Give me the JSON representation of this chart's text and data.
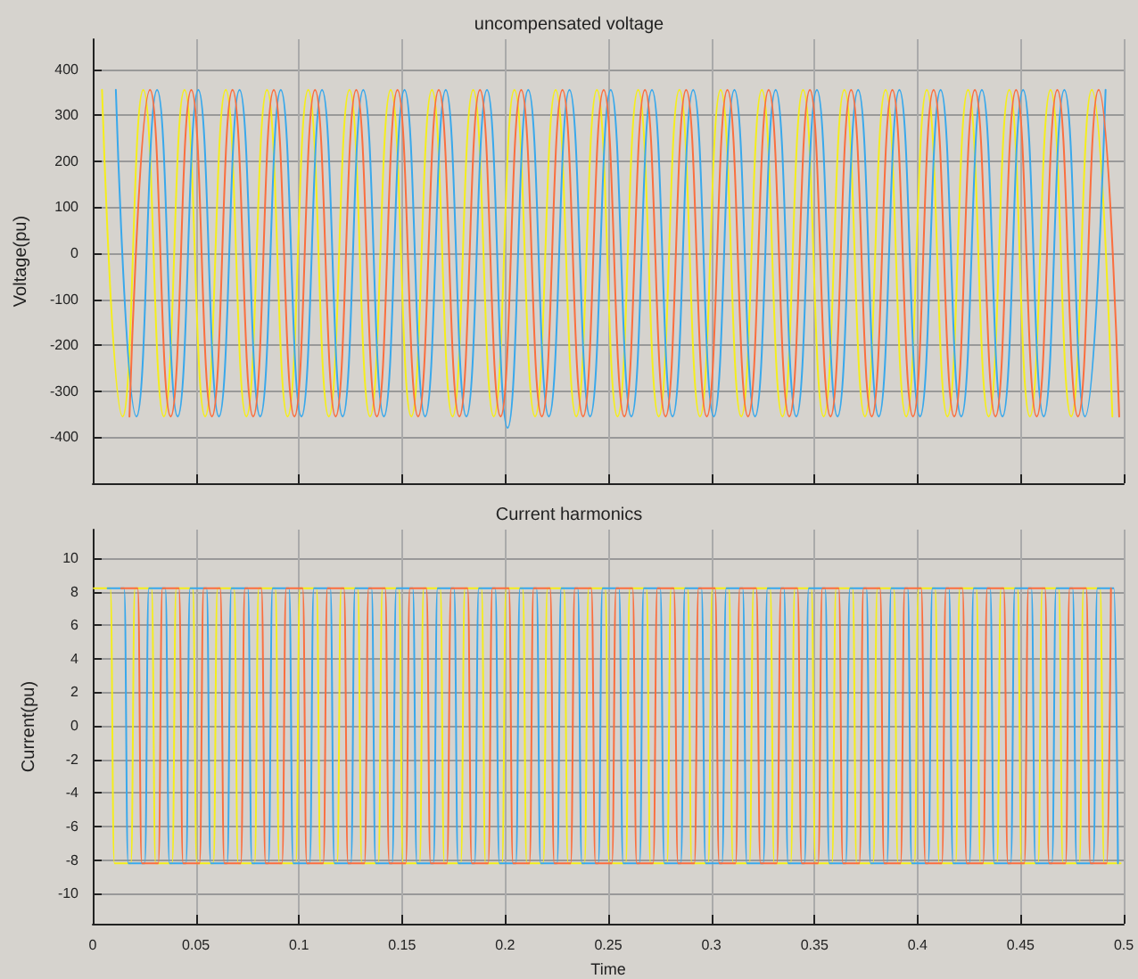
{
  "chart_data": [
    {
      "type": "line",
      "title": "uncompensated voltage",
      "ylabel": "Voltage(pu)",
      "xlim": [
        0,
        0.5
      ],
      "xticks": [
        0,
        0.05,
        0.1,
        0.15,
        0.2,
        0.25,
        0.3,
        0.35,
        0.4,
        0.45,
        0.5
      ],
      "ylim": [
        -500,
        465
      ],
      "yticks": [
        -400,
        -300,
        -200,
        -100,
        0,
        100,
        200,
        300,
        400
      ],
      "grid": true,
      "tick_labels": "y",
      "marker": "none",
      "line_style": "solid",
      "series": [
        {
          "color": "#f5ee1a",
          "x": [
            0.0045,
            0.0145,
            0.0245,
            0.0345,
            0.0445,
            0.0545,
            0.0645,
            0.0745,
            0.0845,
            0.0945,
            0.1045,
            0.1145,
            0.1245,
            0.1345,
            0.1445,
            0.1545,
            0.1645,
            0.1745,
            0.1845,
            0.1945,
            0.2045,
            0.2145,
            0.2245,
            0.2345,
            0.2445,
            0.2545,
            0.2645,
            0.2745,
            0.2845,
            0.2945,
            0.3045,
            0.3145,
            0.3245,
            0.3345,
            0.3445,
            0.3545,
            0.3645,
            0.3745,
            0.3845,
            0.3945,
            0.4045,
            0.4145,
            0.4245,
            0.4345,
            0.4445,
            0.4545,
            0.4645,
            0.4745,
            0.4845,
            0.4945
          ],
          "values": [
            355,
            -355,
            355,
            -355,
            355,
            -355,
            355,
            -355,
            355,
            -355,
            355,
            -355,
            355,
            -355,
            355,
            -355,
            355,
            -355,
            355,
            -355,
            355,
            -355,
            355,
            -355,
            355,
            -355,
            355,
            -355,
            355,
            -355,
            355,
            -355,
            355,
            -355,
            355,
            -355,
            355,
            -355,
            355,
            -355,
            355,
            -355,
            355,
            -355,
            355,
            -355,
            355,
            -355,
            355,
            -355
          ]
        },
        {
          "color": "#38a8ec",
          "x": [
            0.0112,
            0.0212,
            0.0312,
            0.0412,
            0.0512,
            0.0612,
            0.0712,
            0.0812,
            0.0912,
            0.1012,
            0.1112,
            0.1212,
            0.1312,
            0.1412,
            0.1512,
            0.1612,
            0.1712,
            0.1812,
            0.1912,
            0.2012,
            0.2112,
            0.2212,
            0.2312,
            0.2412,
            0.2512,
            0.2612,
            0.2712,
            0.2812,
            0.2912,
            0.3012,
            0.3112,
            0.3212,
            0.3312,
            0.3412,
            0.3512,
            0.3612,
            0.3712,
            0.3812,
            0.3912,
            0.4012,
            0.4112,
            0.4212,
            0.4312,
            0.4412,
            0.4512,
            0.4612,
            0.4712,
            0.4812,
            0.4912
          ],
          "values": [
            355,
            -355,
            355,
            -355,
            355,
            -355,
            355,
            -355,
            355,
            -355,
            355,
            -355,
            355,
            -355,
            355,
            -355,
            355,
            -355,
            355,
            -380,
            355,
            -355,
            355,
            -355,
            355,
            -355,
            355,
            -355,
            355,
            -355,
            355,
            -355,
            355,
            -355,
            355,
            -355,
            355,
            -355,
            355,
            -355,
            355,
            -355,
            355,
            -355,
            355,
            -355,
            355,
            -355,
            355
          ]
        },
        {
          "color": "#fb6e3e",
          "x": [
            0.0178,
            0.0278,
            0.0378,
            0.0478,
            0.0578,
            0.0678,
            0.0778,
            0.0878,
            0.0978,
            0.1078,
            0.1178,
            0.1278,
            0.1378,
            0.1478,
            0.1578,
            0.1678,
            0.1778,
            0.1878,
            0.1978,
            0.2078,
            0.2178,
            0.2278,
            0.2378,
            0.2478,
            0.2578,
            0.2678,
            0.2778,
            0.2878,
            0.2978,
            0.3078,
            0.3178,
            0.3278,
            0.3378,
            0.3478,
            0.3578,
            0.3678,
            0.3778,
            0.3878,
            0.3978,
            0.4078,
            0.4178,
            0.4278,
            0.4378,
            0.4478,
            0.4578,
            0.4678,
            0.4778,
            0.4878,
            0.4978
          ],
          "values": [
            -355,
            355,
            -355,
            355,
            -355,
            355,
            -355,
            355,
            -355,
            355,
            -355,
            355,
            -355,
            355,
            -355,
            355,
            -355,
            355,
            -355,
            355,
            -355,
            355,
            -355,
            355,
            -355,
            355,
            -355,
            355,
            -355,
            355,
            -355,
            355,
            -355,
            355,
            -355,
            355,
            -355,
            355,
            -355,
            355,
            -355,
            355,
            -355,
            355,
            -355,
            355,
            -355,
            355,
            -355
          ]
        }
      ]
    },
    {
      "type": "line",
      "title": "Current harmonics",
      "xlabel": "Time",
      "ylabel": "Current(pu)",
      "xlim": [
        0,
        0.5
      ],
      "xticks": [
        0,
        0.05,
        0.1,
        0.15,
        0.2,
        0.25,
        0.3,
        0.35,
        0.4,
        0.45,
        0.5
      ],
      "ylim": [
        -11.8,
        11.7
      ],
      "yticks": [
        -10,
        -8,
        -6,
        -4,
        -2,
        0,
        2,
        4,
        6,
        8,
        10
      ],
      "grid": true,
      "marker": "none",
      "line_style": "solid",
      "series": [
        {
          "color": "#f5ee1a",
          "x": [
            0.0005,
            0.0085,
            0.0105,
            0.0185,
            0.0205,
            0.0285,
            0.0305,
            0.0385,
            0.0405,
            0.0485,
            0.0505,
            0.0585,
            0.0605,
            0.0685,
            0.0705,
            0.0785,
            0.0805,
            0.0885,
            0.0905,
            0.0985,
            0.1005,
            0.1085,
            0.1105,
            0.1185,
            0.1205,
            0.1285,
            0.1305,
            0.1385,
            0.1405,
            0.1485,
            0.1505,
            0.1585,
            0.1605,
            0.1685,
            0.1705,
            0.1785,
            0.1805,
            0.1885,
            0.1905,
            0.1985,
            0.2005,
            0.2085,
            0.2105,
            0.2185,
            0.2205,
            0.2285,
            0.2305,
            0.2385,
            0.2405,
            0.2485,
            0.2505,
            0.2585,
            0.2605,
            0.2685,
            0.2705,
            0.2785,
            0.2805,
            0.2885,
            0.2905,
            0.2985,
            0.3005,
            0.3085,
            0.3105,
            0.3185,
            0.3205,
            0.3285,
            0.3305,
            0.3385,
            0.3405,
            0.3485,
            0.3505,
            0.3585,
            0.3605,
            0.3685,
            0.3705,
            0.3785,
            0.3805,
            0.3885,
            0.3905,
            0.3985,
            0.4005,
            0.4085,
            0.4105,
            0.4185,
            0.4205,
            0.4285,
            0.4305,
            0.4385,
            0.4405,
            0.4485,
            0.4505,
            0.4585,
            0.4605,
            0.4685,
            0.4705,
            0.4785,
            0.4805,
            0.4885,
            0.4905,
            0.4985
          ],
          "values": [
            8.2,
            8.2,
            -8.2,
            -8.2,
            8.2,
            8.2,
            -8.2,
            -8.2,
            8.2,
            8.2,
            -8.2,
            -8.2,
            8.2,
            8.2,
            -8.2,
            -8.2,
            8.2,
            8.2,
            -8.2,
            -8.2,
            8.2,
            8.2,
            -8.2,
            -8.2,
            8.2,
            8.2,
            -8.2,
            -8.2,
            8.2,
            8.2,
            -8.2,
            -8.2,
            8.2,
            8.2,
            -8.2,
            -8.2,
            8.2,
            8.2,
            -8.2,
            -8.2,
            8.2,
            8.2,
            -8.2,
            -8.2,
            8.2,
            8.2,
            -8.2,
            -8.2,
            8.2,
            8.2,
            -8.2,
            -8.2,
            8.2,
            8.2,
            -8.2,
            -8.2,
            8.2,
            8.2,
            -8.2,
            -8.2,
            8.2,
            8.2,
            -8.2,
            -8.2,
            8.2,
            8.2,
            -8.2,
            -8.2,
            8.2,
            8.2,
            -8.2,
            -8.2,
            8.2,
            8.2,
            -8.2,
            -8.2,
            8.2,
            8.2,
            -8.2,
            -8.2,
            8.2,
            8.2,
            -8.2,
            -8.2,
            8.2,
            8.2,
            -8.2,
            -8.2,
            8.2,
            8.2,
            -8.2,
            -8.2,
            8.2,
            8.2,
            -8.2,
            -8.2,
            8.2,
            8.2,
            -8.2,
            -8.2
          ]
        },
        {
          "color": "#38a8ec",
          "x": [
            0.0072,
            0.0152,
            0.0172,
            0.0252,
            0.0272,
            0.0352,
            0.0372,
            0.0452,
            0.0472,
            0.0552,
            0.0572,
            0.0652,
            0.0672,
            0.0752,
            0.0772,
            0.0852,
            0.0872,
            0.0952,
            0.0972,
            0.1052,
            0.1072,
            0.1152,
            0.1172,
            0.1252,
            0.1272,
            0.1352,
            0.1372,
            0.1452,
            0.1472,
            0.1552,
            0.1572,
            0.1652,
            0.1672,
            0.1752,
            0.1772,
            0.1852,
            0.1872,
            0.1952,
            0.1972,
            0.2052,
            0.2072,
            0.2152,
            0.2172,
            0.2252,
            0.2272,
            0.2352,
            0.2372,
            0.2452,
            0.2472,
            0.2552,
            0.2572,
            0.2652,
            0.2672,
            0.2752,
            0.2772,
            0.2852,
            0.2872,
            0.2952,
            0.2972,
            0.3052,
            0.3072,
            0.3152,
            0.3172,
            0.3252,
            0.3272,
            0.3352,
            0.3372,
            0.3452,
            0.3472,
            0.3552,
            0.3572,
            0.3652,
            0.3672,
            0.3752,
            0.3772,
            0.3852,
            0.3872,
            0.3952,
            0.3972,
            0.4052,
            0.4072,
            0.4152,
            0.4172,
            0.4252,
            0.4272,
            0.4352,
            0.4372,
            0.4452,
            0.4472,
            0.4552,
            0.4572,
            0.4652,
            0.4672,
            0.4752,
            0.4772,
            0.4852,
            0.4872,
            0.4952,
            0.4972
          ],
          "values": [
            8.2,
            8.2,
            -8.2,
            -8.2,
            8.2,
            8.2,
            -8.2,
            -8.2,
            8.2,
            8.2,
            -8.2,
            -8.2,
            8.2,
            8.2,
            -8.2,
            -8.2,
            8.2,
            8.2,
            -8.2,
            -8.2,
            8.2,
            8.2,
            -8.2,
            -8.2,
            8.2,
            8.2,
            -8.2,
            -8.2,
            8.2,
            8.2,
            -8.2,
            -8.2,
            8.2,
            8.2,
            -8.2,
            -8.2,
            8.2,
            8.2,
            -8.2,
            -8.2,
            8.2,
            8.2,
            -8.2,
            -8.2,
            8.2,
            8.2,
            -8.2,
            -8.2,
            8.2,
            8.2,
            -8.2,
            -8.2,
            8.2,
            8.2,
            -8.2,
            -8.2,
            8.2,
            8.2,
            -8.2,
            -8.2,
            8.2,
            8.2,
            -8.2,
            -8.2,
            8.2,
            8.2,
            -8.2,
            -8.2,
            8.2,
            8.2,
            -8.2,
            -8.2,
            8.2,
            8.2,
            -8.2,
            -8.2,
            8.2,
            8.2,
            -8.2,
            -8.2,
            8.2,
            8.2,
            -8.2,
            -8.2,
            8.2,
            8.2,
            -8.2,
            -8.2,
            8.2,
            8.2,
            -8.2,
            -8.2,
            8.2,
            8.2,
            -8.2,
            -8.2,
            8.2,
            8.2,
            -8.2
          ]
        },
        {
          "color": "#fb6e3e",
          "x": [
            0.0138,
            0.0218,
            0.0238,
            0.0318,
            0.0338,
            0.0418,
            0.0438,
            0.0518,
            0.0538,
            0.0618,
            0.0638,
            0.0718,
            0.0738,
            0.0818,
            0.0838,
            0.0918,
            0.0938,
            0.1018,
            0.1038,
            0.1118,
            0.1138,
            0.1218,
            0.1238,
            0.1318,
            0.1338,
            0.1418,
            0.1438,
            0.1518,
            0.1538,
            0.1618,
            0.1638,
            0.1718,
            0.1738,
            0.1818,
            0.1838,
            0.1918,
            0.1938,
            0.2018,
            0.2038,
            0.2118,
            0.2138,
            0.2218,
            0.2238,
            0.2318,
            0.2338,
            0.2418,
            0.2438,
            0.2518,
            0.2538,
            0.2618,
            0.2638,
            0.2718,
            0.2738,
            0.2818,
            0.2838,
            0.2918,
            0.2938,
            0.3018,
            0.3038,
            0.3118,
            0.3138,
            0.3218,
            0.3238,
            0.3318,
            0.3338,
            0.3418,
            0.3438,
            0.3518,
            0.3538,
            0.3618,
            0.3638,
            0.3718,
            0.3738,
            0.3818,
            0.3838,
            0.3918,
            0.3938,
            0.4018,
            0.4038,
            0.4118,
            0.4138,
            0.4218,
            0.4238,
            0.4318,
            0.4338,
            0.4418,
            0.4438,
            0.4518,
            0.4538,
            0.4618,
            0.4638,
            0.4718,
            0.4738,
            0.4818,
            0.4838,
            0.4918,
            0.4938
          ],
          "values": [
            8.2,
            8.2,
            -8.2,
            -8.2,
            8.2,
            8.2,
            -8.2,
            -8.2,
            8.2,
            8.2,
            -8.2,
            -8.2,
            8.2,
            8.2,
            -8.2,
            -8.2,
            8.2,
            8.2,
            -8.2,
            -8.2,
            8.2,
            8.2,
            -8.2,
            -8.2,
            8.2,
            8.2,
            -8.2,
            -8.2,
            8.2,
            8.2,
            -8.2,
            -8.2,
            8.2,
            8.2,
            -8.2,
            -8.2,
            8.2,
            8.2,
            -8.2,
            -8.2,
            8.2,
            8.2,
            -8.2,
            -8.2,
            8.2,
            8.2,
            -8.2,
            -8.2,
            8.2,
            8.2,
            -8.2,
            -8.2,
            8.2,
            8.2,
            -8.2,
            -8.2,
            8.2,
            8.2,
            -8.2,
            -8.2,
            8.2,
            8.2,
            -8.2,
            -8.2,
            8.2,
            8.2,
            -8.2,
            -8.2,
            8.2,
            8.2,
            -8.2,
            -8.2,
            8.2,
            8.2,
            -8.2,
            -8.2,
            8.2,
            8.2,
            -8.2,
            -8.2,
            8.2,
            8.2,
            -8.2,
            -8.2,
            8.2,
            8.2,
            -8.2,
            -8.2,
            8.2,
            8.2,
            -8.2,
            -8.2,
            8.2,
            8.2,
            -8.2,
            -8.2,
            8.2
          ]
        }
      ]
    }
  ]
}
